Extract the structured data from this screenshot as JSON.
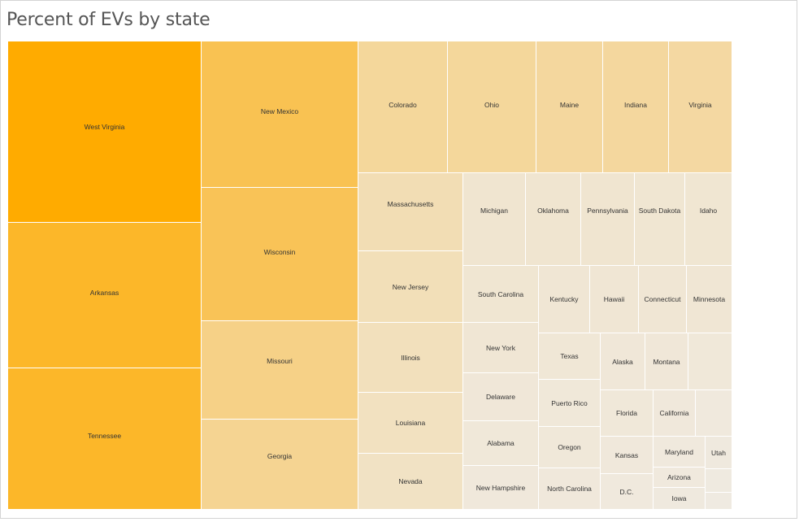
{
  "title": "Percent of EVs by state",
  "chart_data": {
    "type": "treemap",
    "title": "Percent of EVs by state",
    "colors": {
      "high": "#ffab00",
      "low": "#efebe4"
    },
    "tiles": [
      {
        "name": "West Virginia",
        "value": 1.0
      },
      {
        "name": "Arkansas",
        "value": 0.84
      },
      {
        "name": "Tennessee",
        "value": 0.84
      },
      {
        "name": "New Mexico",
        "value": 0.68
      },
      {
        "name": "Wisconsin",
        "value": 0.66
      },
      {
        "name": "Missouri",
        "value": 0.46
      },
      {
        "name": "Georgia",
        "value": 0.41
      },
      {
        "name": "Colorado",
        "value": 0.37
      },
      {
        "name": "Ohio",
        "value": 0.37
      },
      {
        "name": "Maine",
        "value": 0.36
      },
      {
        "name": "Indiana",
        "value": 0.36
      },
      {
        "name": "Virginia",
        "value": 0.34
      },
      {
        "name": "Massachusetts",
        "value": 0.26
      },
      {
        "name": "New Jersey",
        "value": 0.24
      },
      {
        "name": "Illinois",
        "value": 0.22
      },
      {
        "name": "Louisiana",
        "value": 0.2
      },
      {
        "name": "Nevada",
        "value": 0.18
      },
      {
        "name": "Michigan",
        "value": 0.12
      },
      {
        "name": "Oklahoma",
        "value": 0.12
      },
      {
        "name": "Pennsylvania",
        "value": 0.12
      },
      {
        "name": "South Dakota",
        "value": 0.11
      },
      {
        "name": "Idaho",
        "value": 0.11
      },
      {
        "name": "South Carolina",
        "value": 0.11
      },
      {
        "name": "Kentucky",
        "value": 0.1
      },
      {
        "name": "Hawaii",
        "value": 0.1
      },
      {
        "name": "Connecticut",
        "value": 0.1
      },
      {
        "name": "Minnesota",
        "value": 0.1
      },
      {
        "name": "New York",
        "value": 0.1
      },
      {
        "name": "Texas",
        "value": 0.09
      },
      {
        "name": "Alaska",
        "value": 0.08
      },
      {
        "name": "Montana",
        "value": 0.08
      },
      {
        "name": "",
        "value": 0.07
      },
      {
        "name": "Delaware",
        "value": 0.08
      },
      {
        "name": "Puerto Rico",
        "value": 0.07
      },
      {
        "name": "Florida",
        "value": 0.07
      },
      {
        "name": "California",
        "value": 0.06
      },
      {
        "name": "",
        "value": 0.05
      },
      {
        "name": "Alabama",
        "value": 0.07
      },
      {
        "name": "Oregon",
        "value": 0.07
      },
      {
        "name": "Kansas",
        "value": 0.06
      },
      {
        "name": "Maryland",
        "value": 0.05
      },
      {
        "name": "Utah",
        "value": 0.04
      },
      {
        "name": "Arizona",
        "value": 0.05
      },
      {
        "name": "",
        "value": 0.03
      },
      {
        "name": "New Hampshire",
        "value": 0.06
      },
      {
        "name": "North Carolina",
        "value": 0.06
      },
      {
        "name": "D.C.",
        "value": 0.05
      },
      {
        "name": "Iowa",
        "value": 0.04
      },
      {
        "name": "",
        "value": 0.02
      }
    ]
  }
}
